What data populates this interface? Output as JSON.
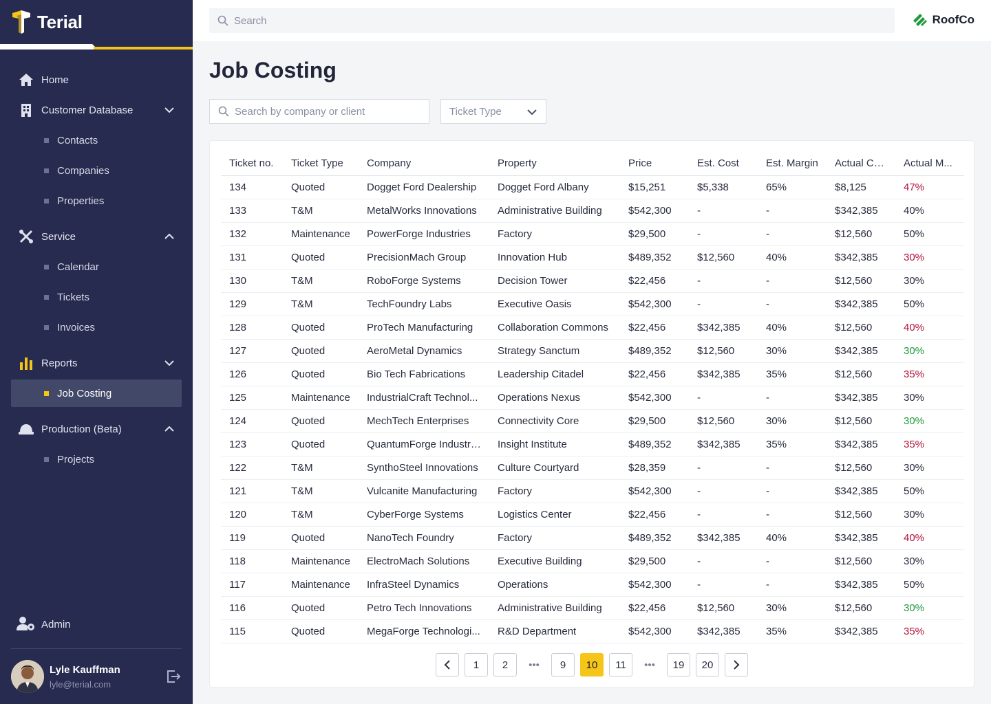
{
  "brand": {
    "name": "Terial",
    "accent": "#f5c518",
    "sidebar_bg": "#262b4f"
  },
  "topbar": {
    "search_placeholder": "Search",
    "client_name": "RoofCo"
  },
  "nav": {
    "home": "Home",
    "customer_db": "Customer Database",
    "contacts": "Contacts",
    "companies": "Companies",
    "properties": "Properties",
    "service": "Service",
    "calendar": "Calendar",
    "tickets": "Tickets",
    "invoices": "Invoices",
    "reports": "Reports",
    "job_costing": "Job Costing",
    "production": "Production (Beta)",
    "projects": "Projects",
    "admin": "Admin"
  },
  "user": {
    "name": "Lyle Kauffman",
    "email": "lyle@terial.com"
  },
  "page": {
    "title": "Job Costing",
    "filter_search_placeholder": "Search by company or client",
    "ticket_type_placeholder": "Ticket Type"
  },
  "table": {
    "headers": [
      "Ticket no.",
      "Ticket Type",
      "Company",
      "Property",
      "Price",
      "Est. Cost",
      "Est. Margin",
      "Actual Co...",
      "Actual M..."
    ],
    "rows": [
      [
        "134",
        "Quoted",
        "Dogget Ford Dealership",
        "Dogget Ford Albany",
        "$15,251",
        "$5,338",
        "65%",
        "$8,125",
        "47%",
        "red"
      ],
      [
        "133",
        "T&M",
        "MetalWorks Innovations",
        "Administrative Building",
        "$542,300",
        "-",
        "-",
        "$342,385",
        "40%",
        ""
      ],
      [
        "132",
        "Maintenance",
        "PowerForge Industries",
        "Factory",
        "$29,500",
        "-",
        "-",
        "$12,560",
        "50%",
        ""
      ],
      [
        "131",
        "Quoted",
        "PrecisionMach Group",
        "Innovation Hub",
        "$489,352",
        "$12,560",
        "40%",
        "$342,385",
        "30%",
        "red"
      ],
      [
        "130",
        "T&M",
        "RoboForge Systems",
        "Decision Tower",
        "$22,456",
        "-",
        "-",
        "$12,560",
        "30%",
        ""
      ],
      [
        "129",
        "T&M",
        "TechFoundry Labs",
        "Executive Oasis",
        "$542,300",
        "-",
        "-",
        "$342,385",
        "50%",
        ""
      ],
      [
        "128",
        "Quoted",
        "ProTech Manufacturing",
        "Collaboration Commons",
        "$22,456",
        "$342,385",
        "40%",
        "$12,560",
        "40%",
        "red"
      ],
      [
        "127",
        "Quoted",
        "AeroMetal Dynamics",
        "Strategy Sanctum",
        "$489,352",
        "$12,560",
        "30%",
        "$342,385",
        "30%",
        "green"
      ],
      [
        "126",
        "Quoted",
        "Bio Tech Fabrications",
        "Leadership Citadel",
        "$22,456",
        "$342,385",
        "35%",
        "$12,560",
        "35%",
        "red"
      ],
      [
        "125",
        "Maintenance",
        "IndustrialCraft Technol...",
        "Operations Nexus",
        "$542,300",
        "-",
        "-",
        "$342,385",
        "30%",
        ""
      ],
      [
        "124",
        "Quoted",
        "MechTech Enterprises",
        "Connectivity Core",
        "$29,500",
        "$12,560",
        "30%",
        "$12,560",
        "30%",
        "green"
      ],
      [
        "123",
        "Quoted",
        "QuantumForge Industri...",
        "Insight Institute",
        "$489,352",
        "$342,385",
        "35%",
        "$342,385",
        "35%",
        "red"
      ],
      [
        "122",
        "T&M",
        "SynthoSteel Innovations",
        "Culture Courtyard",
        "$28,359",
        "-",
        "-",
        "$12,560",
        "30%",
        ""
      ],
      [
        "121",
        "T&M",
        "Vulcanite Manufacturing",
        "Factory",
        "$542,300",
        "-",
        "-",
        "$342,385",
        "50%",
        ""
      ],
      [
        "120",
        "T&M",
        "CyberForge Systems",
        "Logistics Center",
        "$22,456",
        "-",
        "-",
        "$12,560",
        "30%",
        ""
      ],
      [
        "119",
        "Quoted",
        "NanoTech Foundry",
        "Factory",
        "$489,352",
        "$342,385",
        "40%",
        "$342,385",
        "40%",
        "red"
      ],
      [
        "118",
        "Maintenance",
        "ElectroMach Solutions",
        "Executive Building",
        "$29,500",
        "-",
        "-",
        "$12,560",
        "30%",
        ""
      ],
      [
        "117",
        "Maintenance",
        "InfraSteel Dynamics",
        "Operations",
        "$542,300",
        "-",
        "-",
        "$342,385",
        "50%",
        ""
      ],
      [
        "116",
        "Quoted",
        "Petro Tech Innovations",
        "Administrative Building",
        "$22,456",
        "$12,560",
        "30%",
        "$12,560",
        "30%",
        "green"
      ],
      [
        "115",
        "Quoted",
        "MegaForge Technologi...",
        "R&D Department",
        "$542,300",
        "$342,385",
        "35%",
        "$342,385",
        "35%",
        "red"
      ]
    ]
  },
  "pagination": {
    "pages": [
      "1",
      "2",
      "•••",
      "9",
      "10",
      "11",
      "•••",
      "19",
      "20"
    ],
    "current": "10"
  }
}
